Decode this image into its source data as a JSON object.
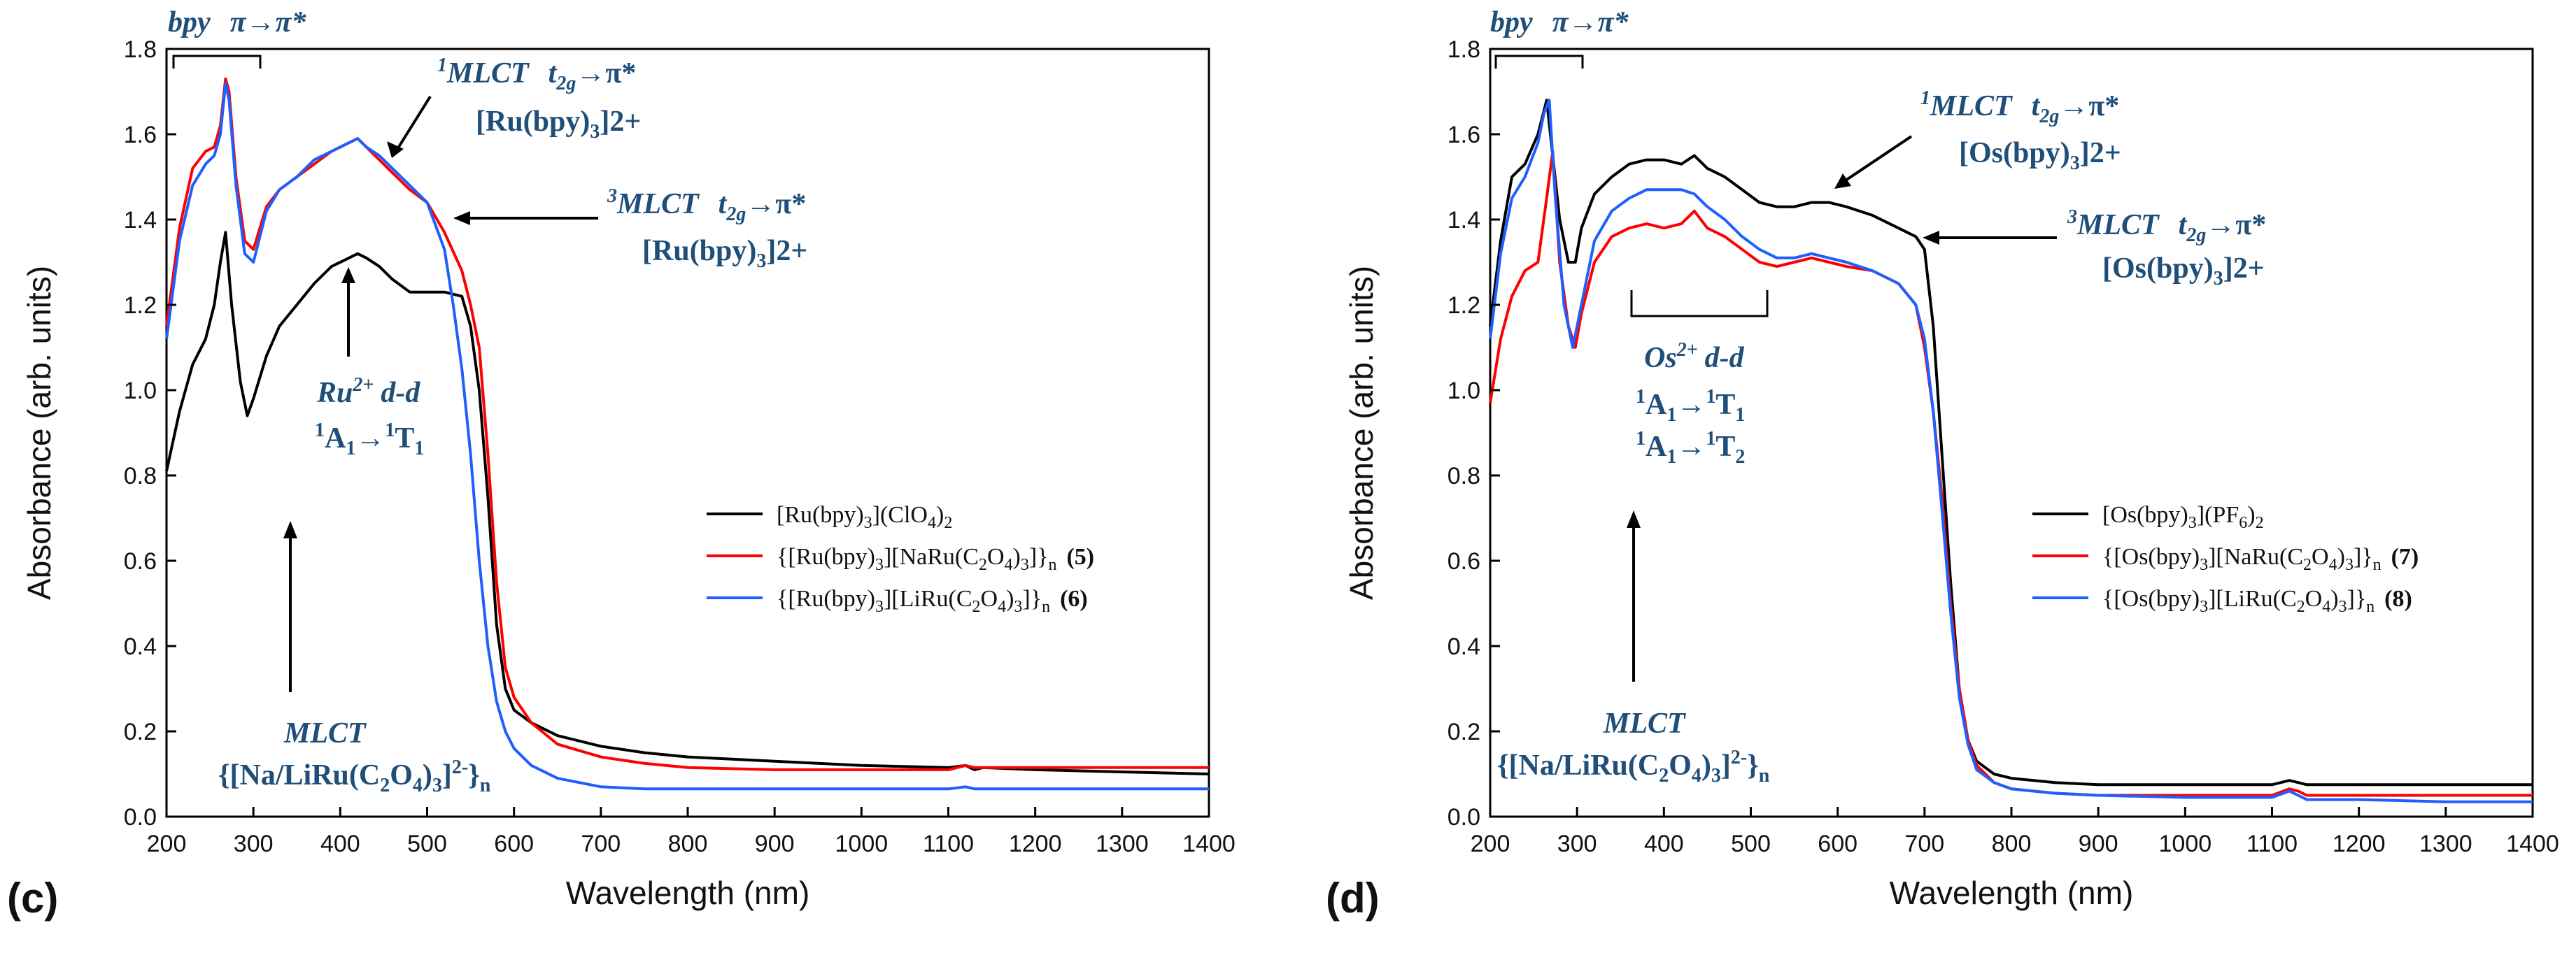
{
  "chart_data": [
    {
      "type": "line",
      "panel_label": "(c)",
      "xlabel": "Wavelength (nm)",
      "ylabel": "Absorbance (arb. units)",
      "xlim": [
        200,
        1400
      ],
      "ylim": [
        0.0,
        1.8
      ],
      "x_ticks": [
        200,
        300,
        400,
        500,
        600,
        700,
        800,
        900,
        1000,
        1100,
        1200,
        1300,
        1400
      ],
      "y_ticks": [
        0.0,
        0.2,
        0.4,
        0.6,
        0.8,
        1.0,
        1.2,
        1.4,
        1.6,
        1.8
      ],
      "grid": false,
      "legend_position": "center-right",
      "series": [
        {
          "name": "[Ru(bpy)3](ClO4)2",
          "legend_main": "[Ru(bpy)",
          "legend_sub1": "3",
          "legend_mid": "](ClO",
          "legend_sub2": "4",
          "legend_mid2": ")",
          "legend_sub3": "2",
          "color": "#000000",
          "x": [
            200,
            215,
            230,
            245,
            255,
            262,
            268,
            275,
            285,
            293,
            300,
            315,
            330,
            350,
            370,
            390,
            410,
            420,
            430,
            445,
            460,
            480,
            500,
            520,
            540,
            550,
            560,
            570,
            580,
            590,
            600,
            620,
            650,
            700,
            750,
            800,
            900,
            1000,
            1100,
            1120,
            1130,
            1140,
            1200,
            1300,
            1400
          ],
          "y": [
            0.81,
            0.95,
            1.06,
            1.12,
            1.2,
            1.3,
            1.37,
            1.2,
            1.02,
            0.94,
            0.98,
            1.08,
            1.15,
            1.2,
            1.25,
            1.29,
            1.31,
            1.32,
            1.31,
            1.29,
            1.26,
            1.23,
            1.23,
            1.23,
            1.22,
            1.15,
            1.0,
            0.75,
            0.45,
            0.3,
            0.25,
            0.22,
            0.19,
            0.165,
            0.15,
            0.14,
            0.13,
            0.12,
            0.115,
            0.12,
            0.11,
            0.115,
            0.11,
            0.105,
            0.1
          ]
        },
        {
          "name": "{[Ru(bpy)3][NaRu(C2O4)3]}n (5)",
          "legend_main": "{[Ru(bpy)",
          "legend_sub1": "3",
          "legend_mid": "][NaRu(C",
          "legend_sub2": "2",
          "legend_mid2": "O",
          "legend_sub3": "4",
          "legend_end": ")",
          "legend_sub4": "3",
          "legend_tail": "]}",
          "legend_sub5": "n",
          "legend_bold": "(5)",
          "color": "#ff0000",
          "x": [
            200,
            215,
            230,
            245,
            255,
            262,
            268,
            272,
            280,
            290,
            300,
            315,
            330,
            350,
            370,
            390,
            410,
            420,
            430,
            445,
            460,
            480,
            500,
            520,
            540,
            550,
            560,
            570,
            580,
            590,
            600,
            620,
            650,
            700,
            750,
            800,
            900,
            1000,
            1100,
            1120,
            1130,
            1140,
            1200,
            1300,
            1400
          ],
          "y": [
            1.15,
            1.38,
            1.52,
            1.56,
            1.57,
            1.62,
            1.73,
            1.7,
            1.5,
            1.35,
            1.33,
            1.43,
            1.47,
            1.5,
            1.53,
            1.56,
            1.58,
            1.59,
            1.57,
            1.54,
            1.51,
            1.47,
            1.44,
            1.37,
            1.28,
            1.2,
            1.1,
            0.85,
            0.55,
            0.35,
            0.28,
            0.22,
            0.17,
            0.14,
            0.125,
            0.115,
            0.11,
            0.11,
            0.11,
            0.12,
            0.115,
            0.115,
            0.115,
            0.115,
            0.115
          ]
        },
        {
          "name": "{[Ru(bpy)3][LiRu(C2O4)3]}n (6)",
          "legend_main": "{[Ru(bpy)",
          "legend_sub1": "3",
          "legend_mid": "][LiRu(C",
          "legend_sub2": "2",
          "legend_mid2": "O",
          "legend_sub3": "4",
          "legend_end": ")",
          "legend_sub4": "3",
          "legend_tail": "]}",
          "legend_sub5": "n",
          "legend_bold": "(6)",
          "color": "#1f5fff",
          "x": [
            200,
            215,
            230,
            245,
            255,
            262,
            268,
            272,
            280,
            290,
            300,
            315,
            330,
            350,
            370,
            390,
            410,
            420,
            430,
            445,
            460,
            480,
            500,
            520,
            530,
            540,
            550,
            560,
            570,
            580,
            590,
            600,
            620,
            650,
            700,
            750,
            800,
            900,
            1000,
            1100,
            1120,
            1130,
            1140,
            1200,
            1300,
            1400
          ],
          "y": [
            1.12,
            1.35,
            1.48,
            1.53,
            1.55,
            1.6,
            1.72,
            1.68,
            1.48,
            1.32,
            1.3,
            1.42,
            1.47,
            1.5,
            1.54,
            1.56,
            1.58,
            1.59,
            1.57,
            1.55,
            1.52,
            1.48,
            1.44,
            1.33,
            1.2,
            1.05,
            0.85,
            0.6,
            0.4,
            0.27,
            0.2,
            0.16,
            0.12,
            0.09,
            0.07,
            0.065,
            0.065,
            0.065,
            0.065,
            0.065,
            0.07,
            0.065,
            0.065,
            0.065,
            0.065,
            0.065
          ]
        }
      ],
      "annotations": {
        "bpy": {
          "a": "bpy",
          "b": "π→π*"
        },
        "mlct1": {
          "sup": "1",
          "a": "MLCT",
          "t": "t",
          "tsub": "2g",
          "arrow": "→π*",
          "complex": "[Ru(bpy)",
          "csub": "3",
          "csup": "]2+"
        },
        "mlct3": {
          "sup": "3",
          "a": "MLCT",
          "t": "t",
          "tsub": "2g",
          "arrow": "→π*",
          "complex": "[Ru(bpy)",
          "csub": "3",
          "csup": "]2+"
        },
        "dd": {
          "ion": "Ru",
          "ionsup": "2+",
          "dd": "d-d",
          "t1a": "1",
          "t1b": "A",
          "t1c": "1",
          "t1d": "→",
          "t1e": "1",
          "t1f": "T",
          "t1g": "1"
        },
        "mlct_bottom": {
          "a": "MLCT",
          "b1": "{[Na/LiRu(C",
          "b2": "2",
          "b3": "O",
          "b4": "4",
          "b5": ")",
          "b6": "3",
          "b7": "]",
          "b8": "2-",
          "b9": "}",
          "b10": "n"
        }
      }
    },
    {
      "type": "line",
      "panel_label": "(d)",
      "xlabel": "Wavelength (nm)",
      "ylabel": "Absorbance (arb. units)",
      "xlim": [
        200,
        1400
      ],
      "ylim": [
        0.0,
        1.8
      ],
      "x_ticks": [
        200,
        300,
        400,
        500,
        600,
        700,
        800,
        900,
        1000,
        1100,
        1200,
        1300,
        1400
      ],
      "y_ticks": [
        0.0,
        0.2,
        0.4,
        0.6,
        0.8,
        1.0,
        1.2,
        1.4,
        1.6,
        1.8
      ],
      "grid": false,
      "legend_position": "center-right",
      "series": [
        {
          "name": "[Os(bpy)3](PF6)2",
          "legend_main": "[Os(bpy)",
          "legend_sub1": "3",
          "legend_mid": "](PF",
          "legend_sub2": "6",
          "legend_mid2": ")",
          "legend_sub3": "2",
          "color": "#000000",
          "x": [
            200,
            212,
            225,
            240,
            255,
            265,
            272,
            280,
            290,
            298,
            305,
            320,
            340,
            360,
            380,
            400,
            420,
            435,
            450,
            470,
            490,
            510,
            530,
            550,
            570,
            590,
            610,
            640,
            670,
            690,
            700,
            710,
            720,
            730,
            740,
            750,
            760,
            780,
            800,
            850,
            900,
            1000,
            1100,
            1120,
            1130,
            1140,
            1200,
            1300,
            1400
          ],
          "y": [
            1.15,
            1.35,
            1.5,
            1.53,
            1.6,
            1.68,
            1.55,
            1.4,
            1.3,
            1.3,
            1.38,
            1.46,
            1.5,
            1.53,
            1.54,
            1.54,
            1.53,
            1.55,
            1.52,
            1.5,
            1.47,
            1.44,
            1.43,
            1.43,
            1.44,
            1.44,
            1.43,
            1.41,
            1.38,
            1.36,
            1.33,
            1.15,
            0.85,
            0.55,
            0.3,
            0.18,
            0.13,
            0.1,
            0.09,
            0.08,
            0.075,
            0.075,
            0.075,
            0.085,
            0.08,
            0.075,
            0.075,
            0.075,
            0.075
          ]
        },
        {
          "name": "{[Os(bpy)3][NaRu(C2O4)3]}n (7)",
          "legend_main": "{[Os(bpy)",
          "legend_sub1": "3",
          "legend_mid": "][NaRu(C",
          "legend_sub2": "2",
          "legend_mid2": "O",
          "legend_sub3": "4",
          "legend_end": ")",
          "legend_sub4": "3",
          "legend_tail": "]}",
          "legend_sub5": "n",
          "legend_bold": "(7)",
          "color": "#ff0000",
          "x": [
            200,
            212,
            225,
            240,
            255,
            265,
            272,
            280,
            290,
            298,
            305,
            320,
            340,
            360,
            380,
            400,
            420,
            435,
            450,
            470,
            490,
            510,
            530,
            550,
            570,
            590,
            610,
            640,
            670,
            690,
            700,
            710,
            720,
            730,
            740,
            750,
            760,
            780,
            800,
            850,
            900,
            1000,
            1100,
            1120,
            1130,
            1140,
            1200,
            1300,
            1400
          ],
          "y": [
            0.97,
            1.12,
            1.22,
            1.28,
            1.3,
            1.45,
            1.56,
            1.3,
            1.15,
            1.1,
            1.18,
            1.3,
            1.36,
            1.38,
            1.39,
            1.38,
            1.39,
            1.42,
            1.38,
            1.36,
            1.33,
            1.3,
            1.29,
            1.3,
            1.31,
            1.3,
            1.29,
            1.28,
            1.25,
            1.2,
            1.1,
            0.95,
            0.75,
            0.5,
            0.3,
            0.18,
            0.12,
            0.08,
            0.065,
            0.055,
            0.05,
            0.05,
            0.05,
            0.065,
            0.06,
            0.05,
            0.05,
            0.05,
            0.05
          ]
        },
        {
          "name": "{[Os(bpy)3][LiRu(C2O4)3]}n (8)",
          "legend_main": "{[Os(bpy)",
          "legend_sub1": "3",
          "legend_mid": "][LiRu(C",
          "legend_sub2": "2",
          "legend_mid2": "O",
          "legend_sub3": "4",
          "legend_end": ")",
          "legend_sub4": "3",
          "legend_tail": "]}",
          "legend_sub5": "n",
          "legend_bold": "(8)",
          "color": "#1f5fff",
          "x": [
            200,
            212,
            225,
            240,
            255,
            262,
            268,
            275,
            285,
            295,
            305,
            320,
            340,
            360,
            380,
            400,
            420,
            435,
            450,
            470,
            490,
            510,
            530,
            550,
            570,
            590,
            610,
            640,
            670,
            690,
            700,
            710,
            720,
            730,
            740,
            750,
            760,
            780,
            800,
            850,
            900,
            1000,
            1100,
            1120,
            1130,
            1140,
            1200,
            1300,
            1400
          ],
          "y": [
            1.12,
            1.32,
            1.45,
            1.5,
            1.58,
            1.65,
            1.68,
            1.45,
            1.2,
            1.1,
            1.2,
            1.35,
            1.42,
            1.45,
            1.47,
            1.47,
            1.47,
            1.46,
            1.43,
            1.4,
            1.36,
            1.33,
            1.31,
            1.31,
            1.32,
            1.31,
            1.3,
            1.28,
            1.25,
            1.2,
            1.12,
            0.95,
            0.72,
            0.48,
            0.28,
            0.17,
            0.11,
            0.08,
            0.065,
            0.055,
            0.05,
            0.045,
            0.045,
            0.06,
            0.05,
            0.04,
            0.04,
            0.035,
            0.035
          ]
        }
      ],
      "annotations": {
        "bpy": {
          "a": "bpy",
          "b": "π→π*"
        },
        "mlct1": {
          "sup": "1",
          "a": "MLCT",
          "t": "t",
          "tsub": "2g",
          "arrow": "→π*",
          "complex": "[Os(bpy)",
          "csub": "3",
          "csup": "]2+"
        },
        "mlct3": {
          "sup": "3",
          "a": "MLCT",
          "t": "t",
          "tsub": "2g",
          "arrow": "→π*",
          "complex": "[Os(bpy)",
          "csub": "3",
          "csup": "]2+"
        },
        "dd": {
          "ion": "Os",
          "ionsup": "2+",
          "dd": "d-d",
          "t1a": "1",
          "t1b": "A",
          "t1c": "1",
          "t1d": "→",
          "t1e": "1",
          "t1f": "T",
          "t1g": "1",
          "t2a": "1",
          "t2b": "A",
          "t2c": "1",
          "t2d": "→",
          "t2e": "1",
          "t2f": "T",
          "t2g": "2"
        },
        "mlct_bottom": {
          "a": "MLCT",
          "b1": "{[Na/LiRu(C",
          "b2": "2",
          "b3": "O",
          "b4": "4",
          "b5": ")",
          "b6": "3",
          "b7": "]",
          "b8": "2-",
          "b9": "}",
          "b10": "n"
        }
      }
    }
  ]
}
